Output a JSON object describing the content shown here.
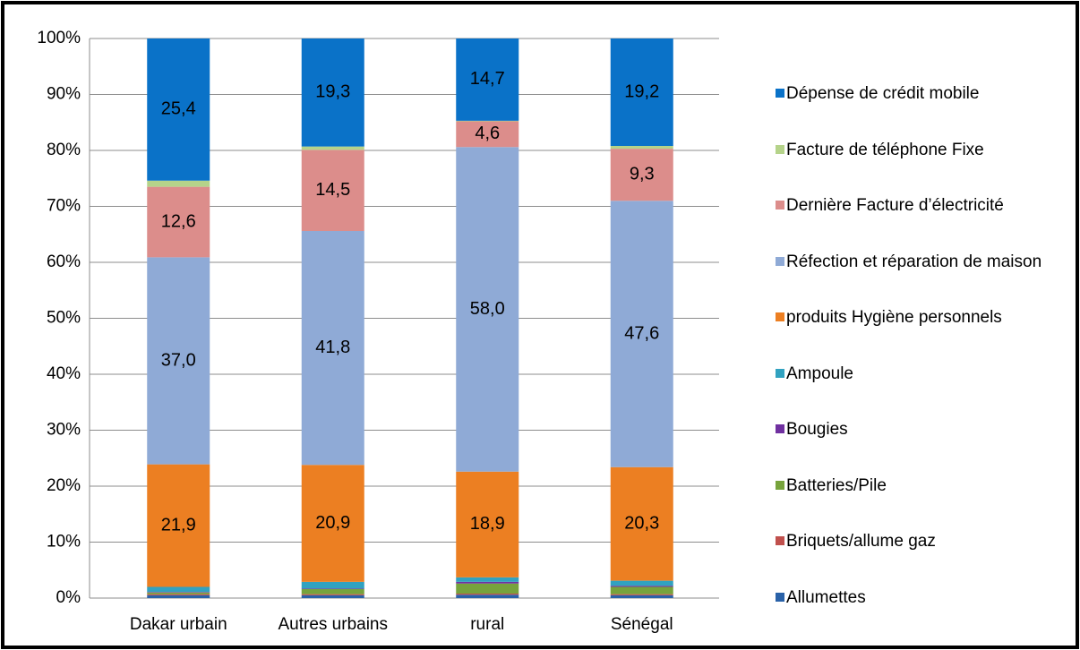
{
  "chart_data": {
    "type": "stacked_bar",
    "categories": [
      "Dakar urbain",
      "Autres urbains",
      "rural",
      "Sénégal"
    ],
    "series": [
      {
        "name": "Allumettes",
        "color": "#2a62a8",
        "values": [
          0.5,
          0.5,
          0.6,
          0.5
        ]
      },
      {
        "name": "Briquets/allume gaz",
        "color": "#c0504d",
        "values": [
          0.2,
          0.2,
          0.2,
          0.2
        ]
      },
      {
        "name": "Batteries/Pile",
        "color": "#77a33c",
        "values": [
          0.3,
          0.9,
          1.8,
          1.3
        ]
      },
      {
        "name": "Bougies",
        "color": "#7030a0",
        "values": [
          0.1,
          0.1,
          0.3,
          0.2
        ]
      },
      {
        "name": "Ampoule",
        "color": "#31a2c0",
        "values": [
          0.9,
          1.2,
          0.8,
          0.9
        ]
      },
      {
        "name": "produits Hygiène personnels",
        "color": "#ec7f22",
        "values": [
          21.9,
          20.9,
          18.9,
          20.3
        ],
        "value_labels": [
          "21,9",
          "20,9",
          "18,9",
          "20,3"
        ]
      },
      {
        "name": "Réfection et réparation de maison",
        "color": "#8faad6",
        "values": [
          37.0,
          41.8,
          58.0,
          47.6
        ],
        "value_labels": [
          "37,0",
          "41,8",
          "58,0",
          "47,6"
        ]
      },
      {
        "name": "Dernière Facture d’électricité",
        "color": "#dc8d8b",
        "values": [
          12.6,
          14.5,
          4.6,
          9.3
        ],
        "value_labels": [
          "12,6",
          "14,5",
          "4,6",
          "9,3"
        ]
      },
      {
        "name": "Facture de téléphone Fixe",
        "color": "#b5d38a",
        "values": [
          1.1,
          0.6,
          0.1,
          0.5
        ]
      },
      {
        "name": "Dépense de crédit mobile",
        "color": "#0a72c8",
        "values": [
          25.4,
          19.3,
          14.7,
          19.2
        ],
        "value_labels": [
          "25,4",
          "19,3",
          "14,7",
          "19,2"
        ]
      }
    ],
    "ylim": [
      0,
      100
    ],
    "yticks": [
      {
        "value": 0,
        "label": "0%"
      },
      {
        "value": 10,
        "label": "10%"
      },
      {
        "value": 20,
        "label": "20%"
      },
      {
        "value": 30,
        "label": "30%"
      },
      {
        "value": 40,
        "label": "40%"
      },
      {
        "value": 50,
        "label": "50%"
      },
      {
        "value": 60,
        "label": "60%"
      },
      {
        "value": 70,
        "label": "70%"
      },
      {
        "value": 80,
        "label": "80%"
      },
      {
        "value": 90,
        "label": "90%"
      },
      {
        "value": 100,
        "label": "100%"
      }
    ],
    "grid": true,
    "legend": "right"
  }
}
